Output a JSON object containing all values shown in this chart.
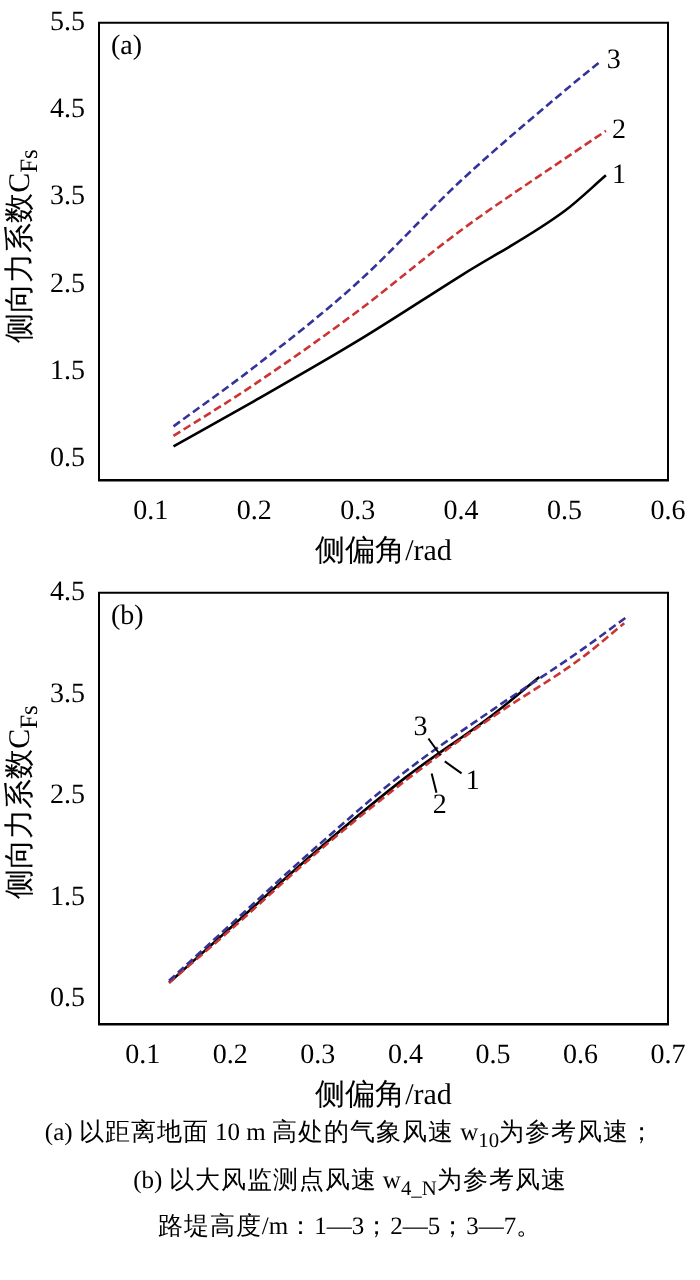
{
  "chart_data": [
    {
      "type": "line",
      "title": "(a)",
      "xlabel": "侧偏角/rad",
      "ylabel": "侧向力系数C$_{Fs}$",
      "xlim": [
        0.05,
        0.6
      ],
      "xticks": [
        0.1,
        0.2,
        0.3,
        0.4,
        0.5,
        0.6
      ],
      "ylim": [
        0.25,
        5.5
      ],
      "yticks": [
        0.5,
        1.5,
        2.5,
        3.5,
        4.5,
        5.5
      ],
      "grid": false,
      "legend": false,
      "marker": "none",
      "series": [
        {
          "name": "1",
          "color": "#000000",
          "line_style": "solid",
          "x": [
            0.122,
            0.2,
            0.3,
            0.4,
            0.5,
            0.54
          ],
          "values": [
            0.64,
            1.16,
            1.85,
            2.6,
            3.34,
            3.75
          ]
        },
        {
          "name": "2",
          "color": "#cc3333",
          "line_style": "dashed",
          "x": [
            0.122,
            0.2,
            0.3,
            0.4,
            0.5,
            0.54
          ],
          "values": [
            0.76,
            1.35,
            2.19,
            3.12,
            3.94,
            4.26
          ]
        },
        {
          "name": "3",
          "color": "#333399",
          "line_style": "dashed",
          "x": [
            0.122,
            0.2,
            0.3,
            0.4,
            0.5,
            0.535
          ],
          "values": [
            0.87,
            1.55,
            2.52,
            3.69,
            4.72,
            5.06
          ]
        }
      ]
    },
    {
      "type": "line",
      "title": "(b)",
      "xlabel": "侧偏角/rad",
      "ylabel": "侧向力系数C$_{Fs}$",
      "xlim": [
        0.05,
        0.7
      ],
      "xticks": [
        0.1,
        0.2,
        0.3,
        0.4,
        0.5,
        0.6,
        0.7
      ],
      "ylim": [
        0.25,
        4.5
      ],
      "yticks": [
        0.5,
        1.5,
        2.5,
        3.5,
        4.5
      ],
      "grid": false,
      "legend": false,
      "marker": "none",
      "series": [
        {
          "color": "#000000",
          "line_style": "solid",
          "x": [
            0.13,
            0.2,
            0.3,
            0.4,
            0.5,
            0.553
          ],
          "values": [
            0.66,
            1.2,
            1.97,
            2.68,
            3.3,
            3.67
          ]
        },
        {
          "color": "#cc3333",
          "line_style": "dashed",
          "x": [
            0.13,
            0.2,
            0.3,
            0.4,
            0.5,
            0.6,
            0.65
          ],
          "values": [
            0.66,
            1.18,
            1.95,
            2.65,
            3.28,
            3.85,
            4.2
          ]
        },
        {
          "color": "#333399",
          "line_style": "dashed",
          "x": [
            0.13,
            0.2,
            0.3,
            0.4,
            0.5,
            0.6,
            0.654
          ],
          "values": [
            0.68,
            1.23,
            2.01,
            2.74,
            3.35,
            3.93,
            4.27
          ]
        }
      ],
      "annotations": [
        {
          "text": "3",
          "x": 0.44,
          "y": 2.9
        },
        {
          "text": "1",
          "x": 0.445,
          "y": 2.84
        },
        {
          "text": "2",
          "x": 0.43,
          "y": 2.72
        },
        "(a) 以距离地面 10 m 高处的气象风速 w$_{10}$为参考风速；",
        "(b) 以大风监测点风速 w$_{4_N}$为参考风速",
        "路堤高度/m：1—3；2—5；3—7。"
      ]
    }
  ]
}
